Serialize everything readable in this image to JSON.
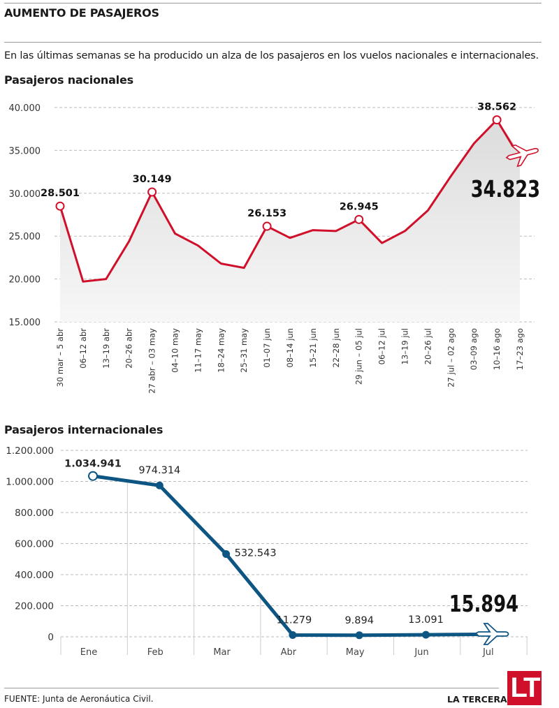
{
  "title": "AUMENTO DE PASAJEROS",
  "subtitle": "En las últimas semanas se ha producido un alza de los pasajeros en los vuelos nacionales e internacionales.",
  "footer": {
    "source": "FUENTE: Junta de Aeronáutica Civil.",
    "brand": "LA TERCERA",
    "logo_text": "LT"
  },
  "colors": {
    "national": "#d0102b",
    "international": "#0d5582",
    "grid": "#bbbbbb",
    "area": "#e6e6e6"
  },
  "chart_data": [
    {
      "type": "area",
      "title": "Pasajeros nacionales",
      "icon": "airplane-icon",
      "ylim": [
        15000,
        40000
      ],
      "yticks": [
        15000,
        20000,
        25000,
        30000,
        35000,
        40000
      ],
      "ytick_labels": [
        "15.000",
        "20.000",
        "25.000",
        "30.000",
        "35.000",
        "40.000"
      ],
      "grid": true,
      "categories": [
        "30 mar – 5 abr",
        "06–12 abr",
        "13–19 abr",
        "20–26 abr",
        "27 abr – 03 may",
        "04–10 may",
        "11–17 may",
        "18–24 may",
        "25–31 may",
        "01–07 jun",
        "08–14 jun",
        "15–21 jun",
        "22–28 jun",
        "29 jun – 05 jul",
        "06–12 jul",
        "13–19 jul",
        "20–26 jul",
        "27 jul – 02 ago",
        "03–09 ago",
        "10–16 ago",
        "17–23 ago"
      ],
      "values": [
        28501,
        19700,
        20000,
        24400,
        30149,
        25300,
        23900,
        21800,
        21300,
        26153,
        24800,
        25700,
        25600,
        26945,
        24200,
        25600,
        28000,
        32000,
        35800,
        38562,
        34823
      ],
      "labels": [
        {
          "index": 0,
          "text": "28.501"
        },
        {
          "index": 4,
          "text": "30.149"
        },
        {
          "index": 9,
          "text": "26.153"
        },
        {
          "index": 13,
          "text": "26.945"
        },
        {
          "index": 19,
          "text": "38.562"
        },
        {
          "index": 20,
          "text": "34.823"
        }
      ]
    },
    {
      "type": "line",
      "title": "Pasajeros internacionales",
      "icon": "airplane-icon",
      "ylim": [
        0,
        1200000
      ],
      "yticks": [
        0,
        200000,
        400000,
        600000,
        800000,
        1000000,
        1200000
      ],
      "ytick_labels": [
        "0",
        "200.000",
        "400.000",
        "600.000",
        "800.000",
        "1.000.000",
        "1.200.000"
      ],
      "grid": true,
      "categories": [
        "Ene",
        "Feb",
        "Mar",
        "Abr",
        "May",
        "Jun",
        "Jul"
      ],
      "values": [
        1034941,
        974314,
        532543,
        11279,
        9894,
        13091,
        15894
      ],
      "labels": [
        "1.034.941",
        "974.314",
        "532.543",
        "11.279",
        "9.894",
        "13.091",
        "15.894"
      ]
    }
  ]
}
